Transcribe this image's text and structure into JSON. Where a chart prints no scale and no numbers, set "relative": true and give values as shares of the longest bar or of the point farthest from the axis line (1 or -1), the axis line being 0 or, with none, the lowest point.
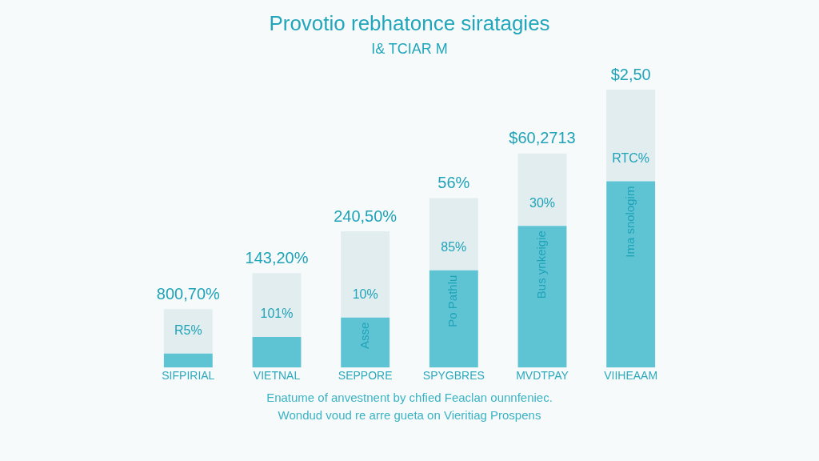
{
  "chart_data": {
    "type": "bar",
    "title": "Provotio rebhatonce siratagies",
    "subtitle": "I& TCIAR M",
    "categories": [
      "SIFPIRIAL",
      "VIETNAL",
      "SEPPORE",
      "SPYGBRES",
      "MVDTPAY",
      "VIIHEAAM"
    ],
    "stacked": true,
    "relative": true,
    "grid": false,
    "legend": false,
    "series": [
      {
        "color": "#5ec4d4",
        "values": [
          0.05,
          0.11,
          0.18,
          0.35,
          0.51,
          0.67
        ]
      },
      {
        "color": "#e2edf0",
        "values": [
          0.16,
          0.23,
          0.31,
          0.26,
          0.26,
          0.33
        ]
      }
    ],
    "annotations": [
      {
        "text": "800,70%",
        "x": "SIFPIRIAL",
        "y": 0.21
      },
      {
        "text": "143,20%",
        "x": "VIETNAL",
        "y": 0.34
      },
      {
        "text": "240,50%",
        "x": "SEPPORE",
        "y": 0.49
      },
      {
        "text": "56%",
        "x": "SPYGBRES",
        "y": 0.61
      },
      {
        "text": "$60,2713",
        "x": "MVDTPAY",
        "y": 0.77
      },
      {
        "text": "$2,50",
        "x": "VIIHEAAM",
        "y": 1
      },
      {
        "text": "R5%",
        "x": "SIFPIRIAL",
        "y": 0.05
      },
      {
        "text": "101%",
        "x": "VIETNAL",
        "y": 0.11
      },
      {
        "text": "10%",
        "x": "SEPPORE",
        "y": 0.18
      },
      {
        "text": "85%",
        "x": "SPYGBRES",
        "y": 0.35
      },
      {
        "text": "30%",
        "x": "MVDTPAY",
        "y": 0.51
      },
      {
        "text": "RTC%",
        "x": "VIIHEAAM",
        "y": 0.67
      },
      {
        "text": "Asse",
        "x": "SEPPORE",
        "y": 0.18
      },
      {
        "text": "Po Pathlu",
        "x": "SPYGBRES",
        "y": 0.35
      },
      {
        "text": "Bus ynkeigie",
        "x": "MVDTPAY",
        "y": 0.51
      },
      {
        "text": "Ima snologim",
        "x": "VIIHEAAM",
        "y": 0.67
      },
      "Enatume of anvestnent by chfied Feaclan ounnfeniec.",
      "Wondud voud re arre gueta on Vieritiag Prospens"
    ]
  }
}
